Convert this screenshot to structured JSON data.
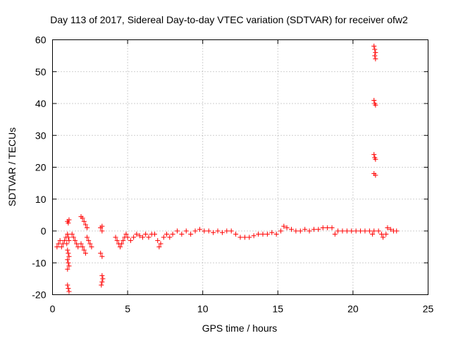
{
  "chart_data": {
    "type": "scatter",
    "title": "Day 113 of 2017, Sidereal Day-to-day VTEC variation (SDTVAR) for receiver ofw2",
    "xlabel": "GPS time / hours",
    "ylabel": "SDTVAR / TECUs",
    "xlim": [
      0,
      25
    ],
    "ylim": [
      -20,
      60
    ],
    "xticks": [
      0,
      5,
      10,
      15,
      20,
      25
    ],
    "yticks": [
      -20,
      -10,
      0,
      10,
      20,
      30,
      40,
      50,
      60
    ],
    "grid": true,
    "marker": "plus",
    "series": [
      {
        "name": "SDTVAR",
        "color": "#ff0000",
        "points": [
          [
            0.3,
            -5
          ],
          [
            0.4,
            -4
          ],
          [
            0.5,
            -3
          ],
          [
            0.6,
            -5
          ],
          [
            0.7,
            -4
          ],
          [
            0.8,
            -3
          ],
          [
            0.9,
            -2
          ],
          [
            0.95,
            -4
          ],
          [
            1.0,
            3
          ],
          [
            1.05,
            2.5
          ],
          [
            1.1,
            3.5
          ],
          [
            1.0,
            -1
          ],
          [
            1.05,
            -2
          ],
          [
            1.1,
            -3
          ],
          [
            1.0,
            -6
          ],
          [
            1.05,
            -7
          ],
          [
            1.1,
            -8
          ],
          [
            1.0,
            -9
          ],
          [
            1.05,
            -10
          ],
          [
            1.1,
            -11
          ],
          [
            1.0,
            -12
          ],
          [
            1.0,
            -17
          ],
          [
            1.05,
            -18
          ],
          [
            1.1,
            -19
          ],
          [
            1.3,
            -1
          ],
          [
            1.4,
            -2
          ],
          [
            1.5,
            -3
          ],
          [
            1.6,
            -4
          ],
          [
            1.7,
            -5
          ],
          [
            1.9,
            4.5
          ],
          [
            2.0,
            4
          ],
          [
            2.1,
            3
          ],
          [
            2.2,
            2
          ],
          [
            2.3,
            1
          ],
          [
            2.0,
            -5
          ],
          [
            2.1,
            -6
          ],
          [
            2.2,
            -7
          ],
          [
            1.9,
            -4
          ],
          [
            2.4,
            -3
          ],
          [
            2.5,
            -4
          ],
          [
            2.6,
            -5
          ],
          [
            2.3,
            -2
          ],
          [
            3.2,
            1
          ],
          [
            3.3,
            1.5
          ],
          [
            3.3,
            0
          ],
          [
            3.2,
            -7
          ],
          [
            3.3,
            -8
          ],
          [
            3.3,
            -14
          ],
          [
            3.35,
            -15
          ],
          [
            3.3,
            -16
          ],
          [
            3.25,
            -17
          ],
          [
            4.2,
            -2
          ],
          [
            4.3,
            -3
          ],
          [
            4.4,
            -4
          ],
          [
            4.5,
            -5
          ],
          [
            4.6,
            -4
          ],
          [
            4.7,
            -3
          ],
          [
            4.8,
            -2
          ],
          [
            4.9,
            -1
          ],
          [
            5.0,
            -2
          ],
          [
            5.2,
            -3
          ],
          [
            5.4,
            -2
          ],
          [
            5.6,
            -1
          ],
          [
            5.8,
            -1.5
          ],
          [
            6.0,
            -2
          ],
          [
            6.2,
            -1
          ],
          [
            6.4,
            -2
          ],
          [
            6.6,
            -1
          ],
          [
            6.8,
            -1
          ],
          [
            7.0,
            -3
          ],
          [
            7.2,
            -4
          ],
          [
            7.1,
            -5
          ],
          [
            7.4,
            -2
          ],
          [
            7.6,
            -1
          ],
          [
            7.8,
            -2
          ],
          [
            8.0,
            -1
          ],
          [
            8.3,
            0
          ],
          [
            8.6,
            -1
          ],
          [
            8.9,
            0
          ],
          [
            9.2,
            -1
          ],
          [
            9.5,
            0
          ],
          [
            9.8,
            0.5
          ],
          [
            10.1,
            0
          ],
          [
            10.4,
            0
          ],
          [
            10.7,
            -0.5
          ],
          [
            11.0,
            0
          ],
          [
            11.3,
            -0.5
          ],
          [
            11.6,
            0
          ],
          [
            11.9,
            0
          ],
          [
            12.2,
            -1
          ],
          [
            12.5,
            -2
          ],
          [
            12.8,
            -2
          ],
          [
            13.1,
            -2
          ],
          [
            13.4,
            -1.5
          ],
          [
            13.7,
            -1
          ],
          [
            14.0,
            -1
          ],
          [
            14.3,
            -1
          ],
          [
            14.6,
            -0.5
          ],
          [
            14.9,
            -1
          ],
          [
            15.2,
            0
          ],
          [
            15.4,
            1.5
          ],
          [
            15.6,
            1
          ],
          [
            15.9,
            0.5
          ],
          [
            16.2,
            0
          ],
          [
            16.5,
            0
          ],
          [
            16.8,
            0.5
          ],
          [
            17.1,
            0
          ],
          [
            17.4,
            0.5
          ],
          [
            17.7,
            0.5
          ],
          [
            18.0,
            1
          ],
          [
            18.3,
            1
          ],
          [
            18.6,
            1
          ],
          [
            18.8,
            -1
          ],
          [
            19.0,
            0
          ],
          [
            19.3,
            0
          ],
          [
            19.6,
            0
          ],
          [
            19.9,
            0
          ],
          [
            20.2,
            0
          ],
          [
            20.5,
            0
          ],
          [
            20.8,
            0
          ],
          [
            21.1,
            0
          ],
          [
            21.3,
            -1
          ],
          [
            21.4,
            0
          ],
          [
            21.4,
            58
          ],
          [
            21.45,
            57
          ],
          [
            21.5,
            56
          ],
          [
            21.45,
            55
          ],
          [
            21.5,
            54
          ],
          [
            21.4,
            41
          ],
          [
            21.45,
            40
          ],
          [
            21.5,
            39.5
          ],
          [
            21.4,
            24
          ],
          [
            21.45,
            23
          ],
          [
            21.5,
            22.5
          ],
          [
            21.4,
            18
          ],
          [
            21.5,
            17.5
          ],
          [
            21.7,
            0
          ],
          [
            21.9,
            -1
          ],
          [
            22.0,
            -2
          ],
          [
            22.2,
            -1
          ],
          [
            22.3,
            1
          ],
          [
            22.5,
            0.5
          ],
          [
            22.7,
            0
          ],
          [
            22.9,
            0
          ]
        ]
      }
    ]
  }
}
